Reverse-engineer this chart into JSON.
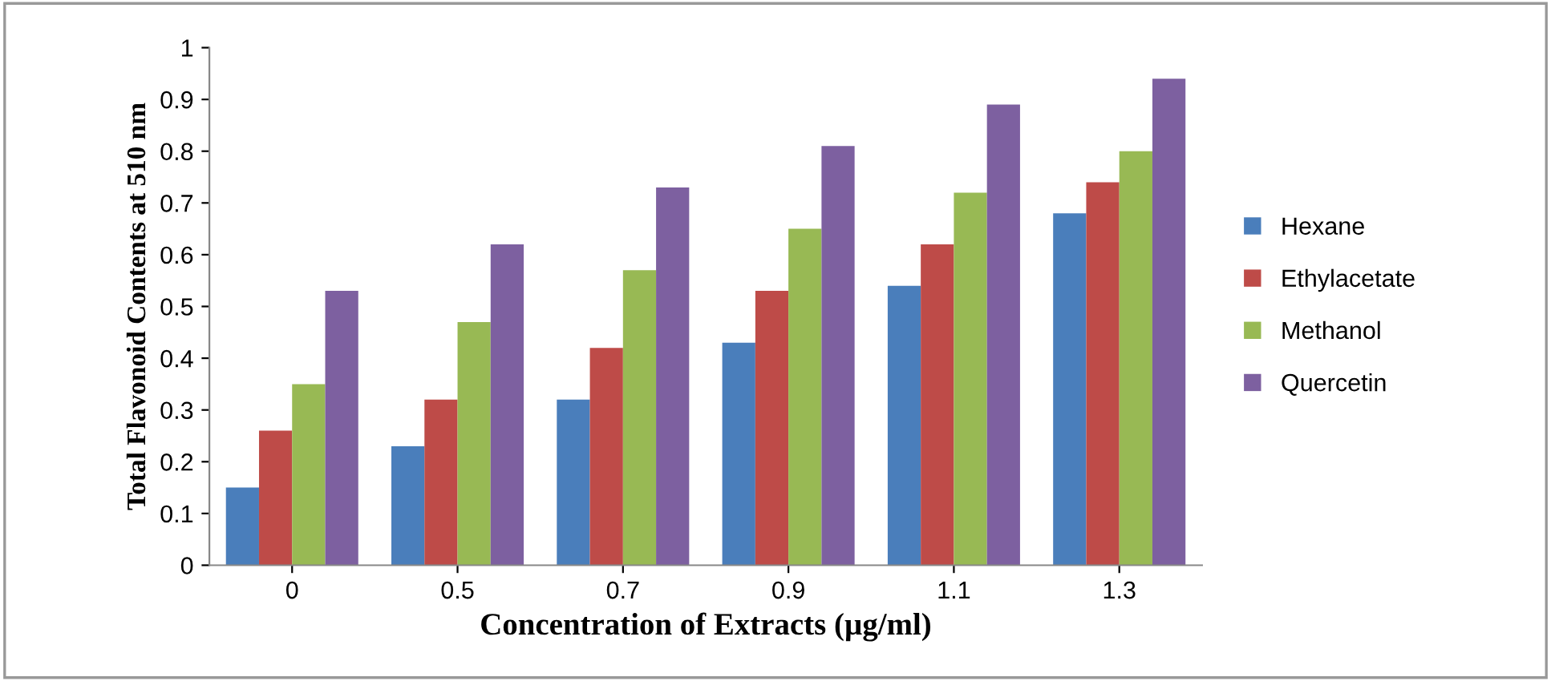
{
  "chart_data": {
    "type": "bar",
    "xlabel": "Concentration of Extracts (µg/ml)",
    "ylabel": "Total Flavonoid Contents at 510 nm",
    "categories": [
      "0",
      "0.5",
      "0.7",
      "0.9",
      "1.1",
      "1.3"
    ],
    "series": [
      {
        "name": "Hexane",
        "color": "#4a7ebb",
        "values": [
          0.15,
          0.23,
          0.32,
          0.43,
          0.54,
          0.68
        ]
      },
      {
        "name": "Ethylacetate",
        "color": "#be4b48",
        "values": [
          0.26,
          0.32,
          0.42,
          0.53,
          0.62,
          0.74
        ]
      },
      {
        "name": "Methanol",
        "color": "#98b954",
        "values": [
          0.35,
          0.47,
          0.57,
          0.65,
          0.72,
          0.8
        ]
      },
      {
        "name": "Quercetin",
        "color": "#7d60a0",
        "values": [
          0.53,
          0.62,
          0.73,
          0.81,
          0.89,
          0.94
        ]
      }
    ],
    "ylim": [
      0,
      1
    ],
    "yticks": [
      0,
      0.1,
      0.2,
      0.3,
      0.4,
      0.5,
      0.6,
      0.7,
      0.8,
      0.9,
      1
    ],
    "grid": false,
    "legend": "right"
  }
}
